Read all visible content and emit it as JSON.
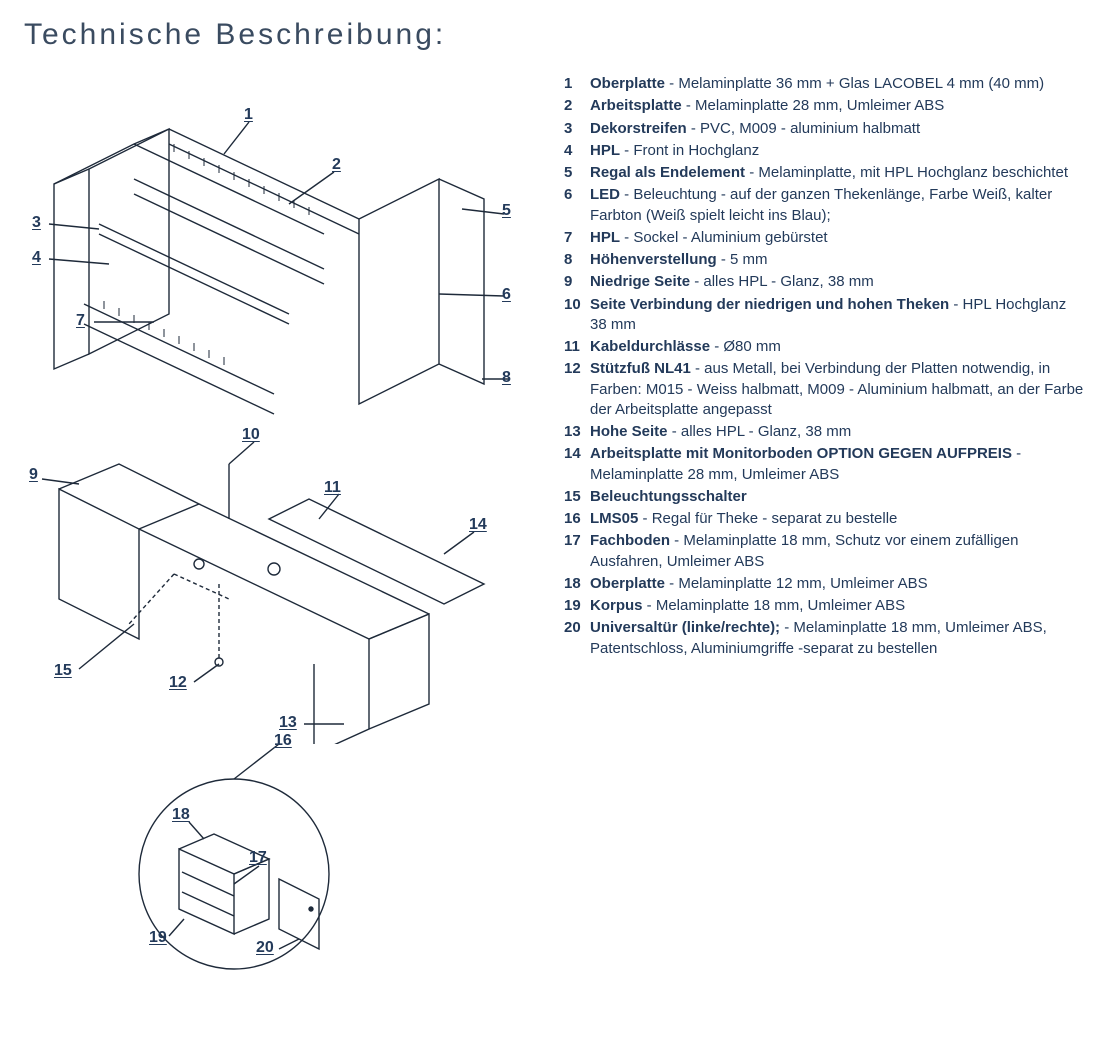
{
  "title": "Technische Beschreibung:",
  "colors": {
    "text": "#233a5a",
    "title": "#3a4b60",
    "stroke": "#1e2a3a",
    "bg": "#ffffff"
  },
  "specs": [
    {
      "n": "1",
      "term": "Oberplatte",
      "desc": " - Melaminplatte 36 mm + Glas LACOBEL 4 mm (40 mm)"
    },
    {
      "n": "2",
      "term": "Arbeitsplatte",
      "desc": " - Melaminplatte 28 mm, Umleimer ABS"
    },
    {
      "n": "3",
      "term": "Dekorstreifen",
      "desc": " - PVC, M009 - aluminium halbmatt"
    },
    {
      "n": "4",
      "term": "HPL",
      "desc": " - Front in Hochglanz"
    },
    {
      "n": "5",
      "term": "Regal als Endelement",
      "desc": " - Melaminplatte, mit HPL Hochglanz beschichtet"
    },
    {
      "n": "6",
      "term": "LED",
      "desc": " - Beleuchtung - auf der ganzen Thekenlänge, Farbe Weiß, kalter Farbton (Weiß spielt leicht ins Blau);"
    },
    {
      "n": "7",
      "term": "HPL",
      "desc": " - Sockel - Aluminium gebürstet"
    },
    {
      "n": "8",
      "term": "Höhenverstellung",
      "desc": " - 5 mm"
    },
    {
      "n": "9",
      "term": "Niedrige Seite",
      "desc": " - alles HPL - Glanz, 38 mm"
    },
    {
      "n": "10",
      "term": "Seite Verbindung der niedrigen und hohen Theken",
      "desc": " - HPL Hochglanz 38 mm"
    },
    {
      "n": "11",
      "term": "Kabeldurchlässe",
      "desc": " - Ø80 mm"
    },
    {
      "n": "12",
      "term": "Stützfuß NL41",
      "desc": " - aus Metall, bei Verbindung der Platten notwendig, in Farben: M015 - Weiss halbmatt, M009 - Aluminium halbmatt, an der Farbe der Arbeitsplatte angepasst"
    },
    {
      "n": "13",
      "term": "Hohe Seite",
      "desc": " - alles HPL - Glanz, 38 mm"
    },
    {
      "n": "14",
      "term": "Arbeitsplatte mit Monitorboden OPTION GEGEN AUFPREIS",
      "desc": " - Melaminplatte 28 mm, Umleimer ABS"
    },
    {
      "n": "15",
      "term": "Beleuchtungsschalter",
      "desc": ""
    },
    {
      "n": "16",
      "term": "LMS05",
      "desc": " - Regal für Theke - separat zu bestelle"
    },
    {
      "n": "17",
      "term": "Fachboden",
      "desc": " - Melaminplatte 18 mm, Schutz vor einem zufälligen Ausfahren, Umleimer ABS"
    },
    {
      "n": "18",
      "term": "Oberplatte",
      "desc": " - Melaminplatte 12 mm, Umleimer ABS"
    },
    {
      "n": "19",
      "term": "Korpus",
      "desc": " - Melaminplatte 18 mm, Umleimer ABS"
    },
    {
      "n": "20",
      "term": "Universaltür (linke/rechte);",
      "desc": " - Melaminplatte 18 mm, Umleimer ABS, Patentschloss, Aluminiumgriffe -separat zu bestellen"
    }
  ],
  "callouts": {
    "top": [
      "1",
      "2",
      "3",
      "4",
      "5",
      "6",
      "7",
      "8"
    ],
    "mid": [
      "9",
      "10",
      "11",
      "12",
      "13",
      "14",
      "15"
    ],
    "inset": [
      "16",
      "17",
      "18",
      "19",
      "20"
    ]
  }
}
